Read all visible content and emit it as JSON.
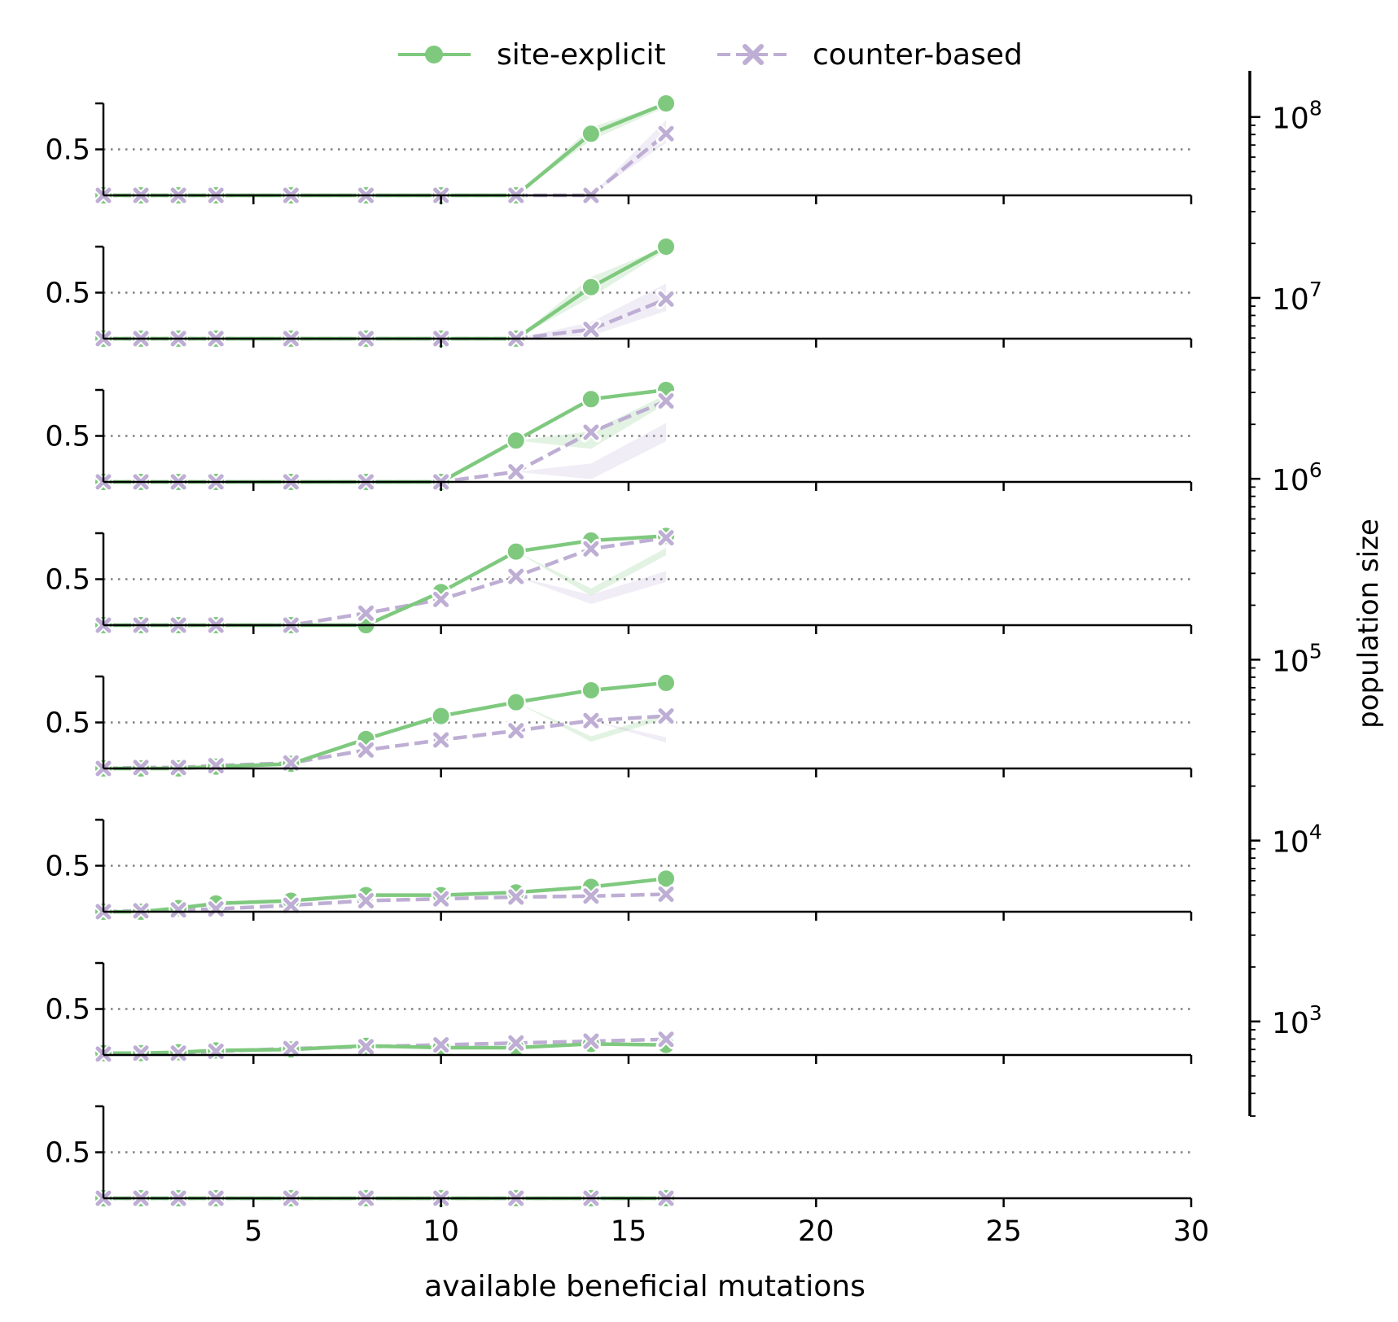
{
  "legend": {
    "series": [
      {
        "label": "site-explicit",
        "color": "#7fc97f",
        "marker": "circle",
        "line": "solid"
      },
      {
        "label": "counter-based",
        "color": "#beaed4",
        "marker": "x",
        "line": "dashed"
      }
    ],
    "placement": "top-center"
  },
  "x_axis": {
    "label": "available beneficial mutations",
    "range": [
      1,
      30
    ],
    "ticks": [
      5,
      10,
      15,
      20,
      25,
      30
    ],
    "tick_labels": [
      "5",
      "10",
      "15",
      "20",
      "25",
      "30"
    ]
  },
  "y_axis": {
    "range": [
      0,
      1
    ],
    "tick_value": 0.5,
    "tick_label": "0.5",
    "reference_line": 0.5
  },
  "size_axis": {
    "label": "population size",
    "scale": "log",
    "range": [
      300,
      180000000
    ],
    "ticks": [
      {
        "value": 1000,
        "base": "10",
        "exp": "3"
      },
      {
        "value": 10000,
        "base": "10",
        "exp": "4"
      },
      {
        "value": 100000,
        "base": "10",
        "exp": "5"
      },
      {
        "value": 1000000,
        "base": "10",
        "exp": "6"
      },
      {
        "value": 10000000,
        "base": "10",
        "exp": "7"
      },
      {
        "value": 100000000,
        "base": "10",
        "exp": "8"
      }
    ]
  },
  "chart_data": {
    "type": "line",
    "x": [
      1,
      2,
      3,
      4,
      6,
      8,
      10,
      12,
      14,
      16
    ],
    "panels": [
      {
        "site_explicit": [
          0,
          0,
          0,
          0,
          0,
          0,
          0,
          0,
          0.67,
          1.0
        ],
        "counter_based": [
          0,
          0,
          0,
          0,
          0,
          0,
          0,
          0,
          0,
          0.67
        ],
        "site_band": [
          0.6,
          0.74,
          0.96,
          1.0
        ],
        "counter_band": [
          0.57,
          0.82
        ]
      },
      {
        "site_explicit": [
          0,
          0,
          0,
          0,
          0,
          0,
          0,
          0,
          0.56,
          1.0
        ],
        "counter_based": [
          0,
          0,
          0,
          0,
          0,
          0,
          0,
          0,
          0.1,
          0.43
        ],
        "site_band": [
          0.45,
          0.67,
          0.96,
          1.0
        ],
        "counter_band": [
          0.03,
          0.18,
          0.3,
          0.6
        ]
      },
      {
        "site_explicit": [
          0,
          0,
          0,
          0,
          0,
          0,
          0,
          0.45,
          0.9,
          1.0
        ],
        "counter_based": [
          0,
          0,
          0,
          0,
          0,
          0,
          0,
          0.11,
          0.54,
          0.88
        ],
        "site_band": [
          0.36,
          0.55,
          0.85,
          0.95
        ],
        "counter_band": [
          0.03,
          0.2,
          0.44,
          0.64
        ]
      },
      {
        "site_explicit": [
          0,
          0,
          0,
          0,
          0,
          0,
          0.36,
          0.8,
          0.92,
          0.97
        ],
        "counter_based": [
          0,
          0,
          0,
          0,
          0,
          0.13,
          0.28,
          0.53,
          0.83,
          0.95
        ],
        "site_band": [
          0.32,
          0.4,
          0.76,
          0.84
        ],
        "counter_band": [
          0.23,
          0.33,
          0.47,
          0.59
        ]
      },
      {
        "site_explicit": [
          0,
          0,
          0,
          0.02,
          0.05,
          0.32,
          0.57,
          0.72,
          0.85,
          0.93
        ],
        "counter_based": [
          0,
          0.01,
          0.01,
          0.03,
          0.06,
          0.2,
          0.31,
          0.41,
          0.52,
          0.57
        ],
        "site_band": [
          0.29,
          0.35,
          0.54,
          0.6
        ],
        "counter_band": [
          0.28,
          0.34
        ]
      },
      {
        "site_explicit": [
          0,
          0,
          0.04,
          0.09,
          0.12,
          0.18,
          0.18,
          0.21,
          0.27,
          0.36
        ],
        "counter_based": [
          0,
          0.01,
          0.02,
          0.03,
          0.07,
          0.12,
          0.14,
          0.16,
          0.17,
          0.19
        ],
        "site_band": [],
        "counter_band": []
      },
      {
        "site_explicit": [
          0.02,
          0.02,
          0.03,
          0.05,
          0.06,
          0.1,
          0.08,
          0.08,
          0.12,
          0.11
        ],
        "counter_based": [
          0.01,
          0.02,
          0.02,
          0.04,
          0.07,
          0.09,
          0.11,
          0.13,
          0.15,
          0.17
        ],
        "site_band": [],
        "counter_band": []
      },
      {
        "site_explicit": [
          0,
          0,
          0,
          0,
          0,
          0,
          0,
          0,
          0,
          0
        ],
        "counter_based": [
          0,
          0,
          0,
          0,
          0,
          0,
          0,
          0,
          0,
          0
        ],
        "site_band": [],
        "counter_band": []
      }
    ]
  }
}
